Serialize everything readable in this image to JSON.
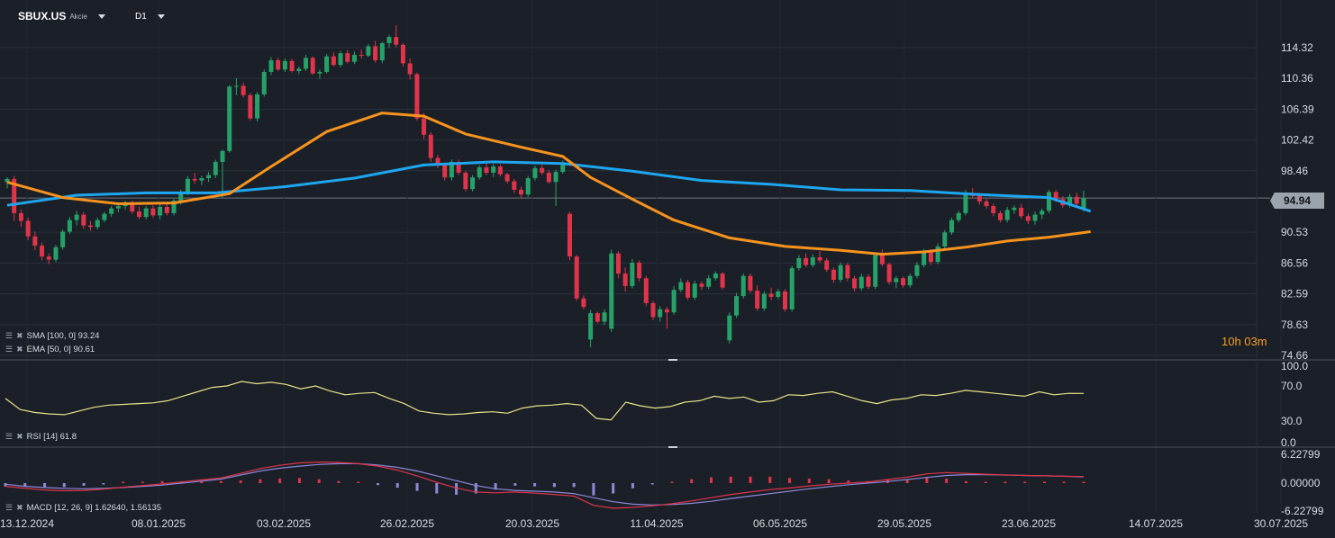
{
  "header": {
    "symbol": "SBUX.US",
    "type": "Akcie",
    "timeframe": "D1"
  },
  "indicators": {
    "sma": "SMA [100, 0] 93.24",
    "ema": "EMA [50, 0] 90.61",
    "rsi": "RSI [14] 61.8",
    "macd": "MACD [12, 26, 9] 1.62640, 1.56135"
  },
  "timer": "10h 03m",
  "current_price": "94.94",
  "colors": {
    "up": "#26a269",
    "down": "#e0344a",
    "sma": "#1ea7f0",
    "ema": "#f7931e",
    "rsi": "#e7e38a",
    "macd_line": "#e0344a",
    "signal_line": "#8e88d8",
    "hist_pos": "#e0344a",
    "hist_neg": "#8e88d8"
  },
  "chart_data": {
    "type": "candlestick",
    "price_axis": [
      "114.32",
      "110.36",
      "106.39",
      "102.42",
      "98.46",
      "94.94",
      "90.53",
      "86.56",
      "82.59",
      "78.63",
      "74.66"
    ],
    "date_axis": [
      "13.12.2024",
      "08.01.2025",
      "03.02.2025",
      "26.02.2025",
      "20.03.2025",
      "11.04.2025",
      "06.05.2025",
      "29.05.2025",
      "23.06.2025",
      "14.07.2025",
      "30.07.2025"
    ],
    "rsi_axis": [
      "100.0",
      "70.0",
      "30.0",
      "0.0"
    ],
    "macd_axis": [
      "6.22799",
      "0.00000",
      "-6.22799"
    ],
    "ylim": [
      74.66,
      118
    ],
    "candles": [
      [
        97.0,
        97.6,
        96.2,
        97.4
      ],
      [
        97.4,
        97.8,
        92.0,
        93.0
      ],
      [
        93.0,
        93.5,
        91.2,
        92.0
      ],
      [
        92.0,
        92.4,
        89.5,
        90.0
      ],
      [
        90.0,
        90.6,
        88.2,
        88.8
      ],
      [
        88.8,
        89.2,
        86.9,
        87.4
      ],
      [
        87.4,
        87.8,
        86.4,
        87.0
      ],
      [
        87.0,
        88.9,
        86.7,
        88.6
      ],
      [
        88.6,
        90.9,
        88.3,
        90.6
      ],
      [
        90.6,
        92.5,
        90.3,
        92.1
      ],
      [
        92.1,
        93.3,
        91.4,
        92.8
      ],
      [
        92.8,
        93.1,
        91.0,
        91.4
      ],
      [
        91.4,
        92.0,
        90.7,
        91.2
      ],
      [
        91.2,
        92.4,
        90.9,
        92.1
      ],
      [
        92.1,
        93.2,
        91.8,
        92.9
      ],
      [
        92.9,
        93.9,
        92.5,
        93.6
      ],
      [
        93.6,
        94.4,
        93.1,
        93.9
      ],
      [
        93.9,
        94.6,
        93.4,
        94.3
      ],
      [
        94.3,
        94.6,
        92.9,
        93.2
      ],
      [
        93.2,
        93.8,
        92.2,
        92.5
      ],
      [
        92.5,
        93.9,
        92.2,
        93.6
      ],
      [
        93.6,
        94.0,
        92.4,
        92.7
      ],
      [
        92.7,
        94.2,
        92.2,
        93.8
      ],
      [
        93.8,
        94.3,
        92.7,
        93.0
      ],
      [
        93.0,
        94.8,
        92.7,
        94.6
      ],
      [
        94.6,
        96.0,
        94.1,
        95.7
      ],
      [
        95.7,
        97.8,
        95.3,
        97.4
      ],
      [
        97.4,
        98.2,
        96.8,
        97.2
      ],
      [
        97.2,
        97.8,
        96.6,
        97.5
      ],
      [
        97.5,
        98.3,
        97.0,
        97.9
      ],
      [
        97.9,
        99.9,
        97.5,
        99.6
      ],
      [
        99.6,
        101.2,
        95.0,
        101.0
      ],
      [
        101.0,
        109.5,
        100.8,
        109.3
      ],
      [
        109.3,
        110.4,
        108.2,
        109.4
      ],
      [
        109.4,
        109.8,
        107.9,
        108.2
      ],
      [
        108.2,
        108.5,
        104.9,
        105.2
      ],
      [
        105.2,
        108.6,
        104.8,
        108.3
      ],
      [
        108.3,
        111.5,
        108.0,
        111.2
      ],
      [
        111.2,
        113.1,
        110.8,
        112.7
      ],
      [
        112.7,
        113.0,
        111.3,
        111.5
      ],
      [
        111.5,
        112.9,
        111.2,
        112.6
      ],
      [
        112.6,
        112.9,
        111.1,
        111.3
      ],
      [
        111.3,
        111.9,
        110.9,
        111.6
      ],
      [
        111.6,
        113.4,
        111.3,
        113.0
      ],
      [
        113.0,
        113.2,
        110.8,
        111.0
      ],
      [
        111.0,
        111.5,
        110.3,
        111.2
      ],
      [
        111.2,
        113.5,
        111.0,
        113.2
      ],
      [
        113.2,
        113.7,
        111.9,
        112.1
      ],
      [
        112.1,
        113.9,
        111.8,
        113.6
      ],
      [
        113.6,
        114.0,
        112.3,
        112.5
      ],
      [
        112.5,
        113.8,
        112.2,
        113.4
      ],
      [
        113.4,
        114.1,
        112.9,
        113.3
      ],
      [
        113.3,
        114.8,
        113.1,
        114.5
      ],
      [
        114.5,
        115.2,
        112.4,
        112.7
      ],
      [
        112.7,
        115.1,
        112.3,
        114.9
      ],
      [
        114.9,
        116.0,
        114.3,
        115.7
      ],
      [
        115.7,
        117.2,
        114.4,
        114.7
      ],
      [
        114.7,
        114.9,
        111.9,
        112.3
      ],
      [
        112.3,
        112.9,
        110.2,
        110.9
      ],
      [
        110.9,
        111.1,
        104.9,
        105.2
      ],
      [
        105.2,
        105.9,
        102.5,
        103.1
      ],
      [
        103.1,
        103.4,
        99.6,
        100.1
      ],
      [
        100.1,
        100.5,
        98.8,
        99.2
      ],
      [
        99.2,
        99.4,
        97.2,
        97.6
      ],
      [
        97.6,
        99.9,
        97.2,
        99.6
      ],
      [
        99.6,
        99.9,
        97.9,
        98.2
      ],
      [
        98.2,
        98.4,
        95.8,
        96.1
      ],
      [
        96.1,
        97.9,
        95.8,
        97.6
      ],
      [
        97.6,
        99.2,
        97.3,
        98.9
      ],
      [
        98.9,
        99.6,
        97.9,
        98.2
      ],
      [
        98.2,
        99.3,
        97.6,
        99.0
      ],
      [
        99.0,
        99.3,
        97.7,
        98.0
      ],
      [
        98.0,
        98.2,
        96.8,
        97.1
      ],
      [
        97.1,
        97.4,
        95.6,
        96.0
      ],
      [
        96.0,
        96.4,
        94.9,
        95.4
      ],
      [
        95.4,
        97.8,
        95.1,
        97.5
      ],
      [
        97.5,
        99.1,
        97.2,
        98.8
      ],
      [
        98.8,
        99.2,
        97.9,
        98.2
      ],
      [
        98.2,
        98.5,
        96.8,
        97.0
      ],
      [
        97.0,
        98.6,
        93.9,
        98.3
      ],
      [
        98.3,
        99.8,
        98.1,
        99.5
      ],
      [
        92.9,
        93.2,
        86.9,
        87.4
      ],
      [
        87.4,
        87.6,
        81.7,
        82.0
      ],
      [
        82.0,
        82.4,
        80.6,
        80.9
      ],
      [
        76.7,
        80.5,
        75.7,
        80.1
      ],
      [
        80.1,
        80.3,
        78.8,
        79.0
      ],
      [
        79.0,
        80.6,
        78.6,
        80.2
      ],
      [
        78.1,
        88.3,
        77.7,
        87.8
      ],
      [
        87.8,
        88.1,
        84.6,
        85.2
      ],
      [
        85.2,
        86.0,
        82.9,
        83.6
      ],
      [
        83.6,
        87.1,
        83.3,
        86.6
      ],
      [
        86.6,
        86.9,
        84.2,
        84.6
      ],
      [
        84.6,
        84.9,
        81.0,
        81.4
      ],
      [
        81.4,
        81.7,
        79.2,
        79.6
      ],
      [
        79.6,
        81.0,
        79.0,
        80.6
      ],
      [
        80.6,
        80.9,
        78.1,
        80.2
      ],
      [
        80.2,
        83.6,
        79.9,
        83.1
      ],
      [
        83.1,
        84.6,
        82.8,
        84.1
      ],
      [
        84.1,
        84.4,
        81.8,
        82.1
      ],
      [
        82.1,
        84.3,
        81.8,
        83.9
      ],
      [
        83.9,
        84.2,
        83.1,
        83.5
      ],
      [
        83.5,
        85.0,
        83.2,
        84.6
      ],
      [
        84.6,
        85.5,
        84.3,
        85.2
      ],
      [
        85.2,
        85.4,
        83.1,
        83.4
      ],
      [
        76.6,
        80.2,
        76.2,
        79.8
      ],
      [
        79.8,
        82.7,
        79.5,
        82.3
      ],
      [
        82.3,
        85.2,
        82.0,
        84.9
      ],
      [
        84.9,
        85.2,
        82.7,
        83.0
      ],
      [
        83.0,
        83.7,
        80.4,
        80.7
      ],
      [
        80.7,
        82.9,
        80.4,
        82.6
      ],
      [
        82.6,
        83.4,
        81.8,
        82.2
      ],
      [
        82.2,
        83.2,
        81.9,
        82.9
      ],
      [
        82.9,
        83.2,
        80.3,
        80.6
      ],
      [
        80.6,
        86.2,
        80.3,
        85.9
      ],
      [
        85.9,
        87.6,
        85.6,
        87.2
      ],
      [
        87.2,
        87.8,
        86.0,
        86.3
      ],
      [
        86.3,
        87.7,
        86.0,
        87.3
      ],
      [
        87.3,
        88.1,
        86.6,
        86.9
      ],
      [
        86.9,
        87.2,
        85.4,
        85.7
      ],
      [
        85.7,
        86.0,
        84.0,
        84.4
      ],
      [
        84.4,
        86.6,
        84.1,
        86.3
      ],
      [
        86.3,
        86.6,
        84.2,
        84.6
      ],
      [
        84.6,
        84.9,
        82.9,
        83.3
      ],
      [
        83.3,
        85.2,
        83.0,
        84.8
      ],
      [
        84.8,
        85.1,
        83.2,
        83.5
      ],
      [
        83.5,
        87.9,
        83.2,
        87.6
      ],
      [
        87.6,
        88.3,
        86.1,
        86.4
      ],
      [
        86.4,
        86.6,
        83.8,
        84.1
      ],
      [
        84.1,
        84.9,
        83.3,
        84.6
      ],
      [
        84.6,
        84.8,
        83.4,
        83.7
      ],
      [
        83.7,
        85.2,
        83.4,
        84.9
      ],
      [
        84.9,
        86.7,
        84.6,
        86.3
      ],
      [
        86.3,
        88.4,
        86.0,
        88.0
      ],
      [
        88.0,
        88.3,
        86.3,
        86.7
      ],
      [
        86.7,
        89.1,
        86.4,
        88.7
      ],
      [
        88.7,
        90.8,
        88.4,
        90.5
      ],
      [
        90.5,
        92.4,
        90.2,
        92.1
      ],
      [
        92.1,
        93.3,
        91.8,
        93.0
      ],
      [
        93.0,
        96.0,
        92.7,
        95.6
      ],
      [
        95.6,
        96.2,
        94.9,
        95.2
      ],
      [
        95.2,
        95.6,
        94.1,
        94.5
      ],
      [
        94.5,
        94.8,
        93.6,
        93.9
      ],
      [
        93.9,
        94.2,
        92.6,
        93.0
      ],
      [
        93.0,
        93.3,
        91.8,
        92.1
      ],
      [
        92.1,
        93.8,
        91.8,
        93.4
      ],
      [
        93.4,
        94.0,
        92.9,
        93.7
      ],
      [
        93.7,
        94.2,
        92.3,
        92.6
      ],
      [
        92.6,
        92.9,
        91.6,
        92.0
      ],
      [
        92.0,
        93.2,
        91.5,
        92.8
      ],
      [
        92.8,
        93.6,
        92.2,
        93.3
      ],
      [
        93.3,
        96.0,
        93.0,
        95.7
      ],
      [
        95.7,
        96.0,
        94.4,
        94.8
      ],
      [
        94.8,
        95.2,
        93.7,
        94.0
      ],
      [
        94.0,
        95.5,
        93.7,
        95.1
      ],
      [
        95.1,
        95.6,
        93.8,
        94.2
      ],
      [
        93.5,
        95.9,
        93.2,
        94.94
      ]
    ],
    "sma": [
      [
        0,
        94.0
      ],
      [
        10,
        95.3
      ],
      [
        20,
        95.6
      ],
      [
        30,
        95.6
      ],
      [
        40,
        96.4
      ],
      [
        50,
        97.5
      ],
      [
        60,
        99.2
      ],
      [
        70,
        99.6
      ],
      [
        80,
        99.4
      ],
      [
        90,
        98.4
      ],
      [
        100,
        97.2
      ],
      [
        110,
        96.7
      ],
      [
        120,
        96.0
      ],
      [
        130,
        95.9
      ],
      [
        140,
        95.4
      ],
      [
        150,
        95.0
      ],
      [
        156,
        93.24
      ]
    ],
    "ema": [
      [
        0,
        97.0
      ],
      [
        8,
        95.0
      ],
      [
        16,
        94.2
      ],
      [
        24,
        94.3
      ],
      [
        32,
        95.5
      ],
      [
        38,
        99.0
      ],
      [
        46,
        103.5
      ],
      [
        54,
        105.9
      ],
      [
        60,
        105.5
      ],
      [
        66,
        103.2
      ],
      [
        74,
        101.5
      ],
      [
        80,
        100.3
      ],
      [
        84,
        97.6
      ],
      [
        90,
        94.8
      ],
      [
        96,
        92.1
      ],
      [
        104,
        89.8
      ],
      [
        112,
        88.7
      ],
      [
        120,
        88.2
      ],
      [
        126,
        87.7
      ],
      [
        132,
        88.0
      ],
      [
        138,
        88.6
      ],
      [
        144,
        89.4
      ],
      [
        150,
        89.9
      ],
      [
        156,
        90.61
      ]
    ],
    "rsi": [
      55,
      40,
      36,
      34,
      33,
      38,
      43,
      46,
      47,
      48,
      49,
      52,
      58,
      64,
      70,
      72,
      78,
      75,
      77,
      74,
      68,
      72,
      65,
      60,
      62,
      63,
      55,
      48,
      38,
      35,
      33,
      34,
      36,
      37,
      35,
      42,
      45,
      46,
      48,
      46,
      28,
      26,
      50,
      45,
      42,
      44,
      50,
      52,
      58,
      55,
      57,
      50,
      52,
      60,
      59,
      62,
      64,
      58,
      52,
      48,
      53,
      55,
      60,
      59,
      62,
      66,
      64,
      62,
      60,
      58,
      64,
      60,
      62,
      61.8
    ],
    "macd": [
      -0.8,
      -1.3,
      -1.7,
      -1.9,
      -1.8,
      -1.5,
      -1.0,
      -0.6,
      -0.2,
      0.3,
      0.8,
      1.3,
      2.4,
      3.6,
      4.4,
      5.0,
      5.2,
      5.1,
      4.8,
      4.2,
      3.2,
      1.8,
      0.2,
      -1.2,
      -2.2,
      -2.4,
      -2.2,
      -2.5,
      -2.8,
      -3.2,
      -5.5,
      -6.2,
      -6.0,
      -5.6,
      -5.1,
      -4.4,
      -3.6,
      -2.8,
      -2.2,
      -1.6,
      -1.2,
      -0.7,
      -0.3,
      0.0,
      0.3,
      0.9,
      1.5,
      2.3,
      2.6,
      2.4,
      2.2,
      2.0,
      1.9,
      1.8,
      1.7,
      1.6264
    ],
    "signal": [
      -0.3,
      -0.8,
      -1.1,
      -1.3,
      -1.4,
      -1.3,
      -1.1,
      -0.8,
      -0.5,
      0.0,
      0.5,
      1.0,
      2.0,
      3.0,
      3.7,
      4.2,
      4.6,
      4.8,
      4.8,
      4.5,
      3.9,
      3.0,
      1.8,
      0.6,
      -0.6,
      -1.4,
      -1.8,
      -2.0,
      -2.2,
      -2.6,
      -3.6,
      -4.6,
      -5.2,
      -5.4,
      -5.3,
      -5.0,
      -4.5,
      -3.8,
      -3.2,
      -2.6,
      -2.0,
      -1.4,
      -0.9,
      -0.4,
      0.0,
      0.4,
      0.9,
      1.4,
      1.9,
      2.1,
      2.1,
      2.0,
      1.9,
      1.8,
      1.7,
      1.56135
    ]
  }
}
